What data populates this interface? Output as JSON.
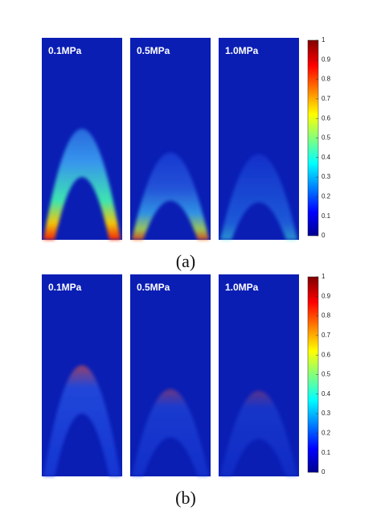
{
  "panels": [
    {
      "caption": "(a)",
      "images": [
        {
          "label": "0.1MPa"
        },
        {
          "label": "0.5MPa"
        },
        {
          "label": "1.0MPa"
        }
      ],
      "colorbar": {
        "ticks": [
          0,
          0.1,
          0.2,
          0.3,
          0.4,
          0.5,
          0.6,
          0.7,
          0.8,
          0.9,
          1
        ]
      }
    },
    {
      "caption": "(b)",
      "images": [
        {
          "label": "0.1MPa"
        },
        {
          "label": "0.5MPa"
        },
        {
          "label": "1.0MPa"
        }
      ],
      "colorbar": {
        "ticks": [
          0,
          0.1,
          0.2,
          0.3,
          0.4,
          0.5,
          0.6,
          0.7,
          0.8,
          0.9,
          1
        ]
      }
    }
  ]
}
